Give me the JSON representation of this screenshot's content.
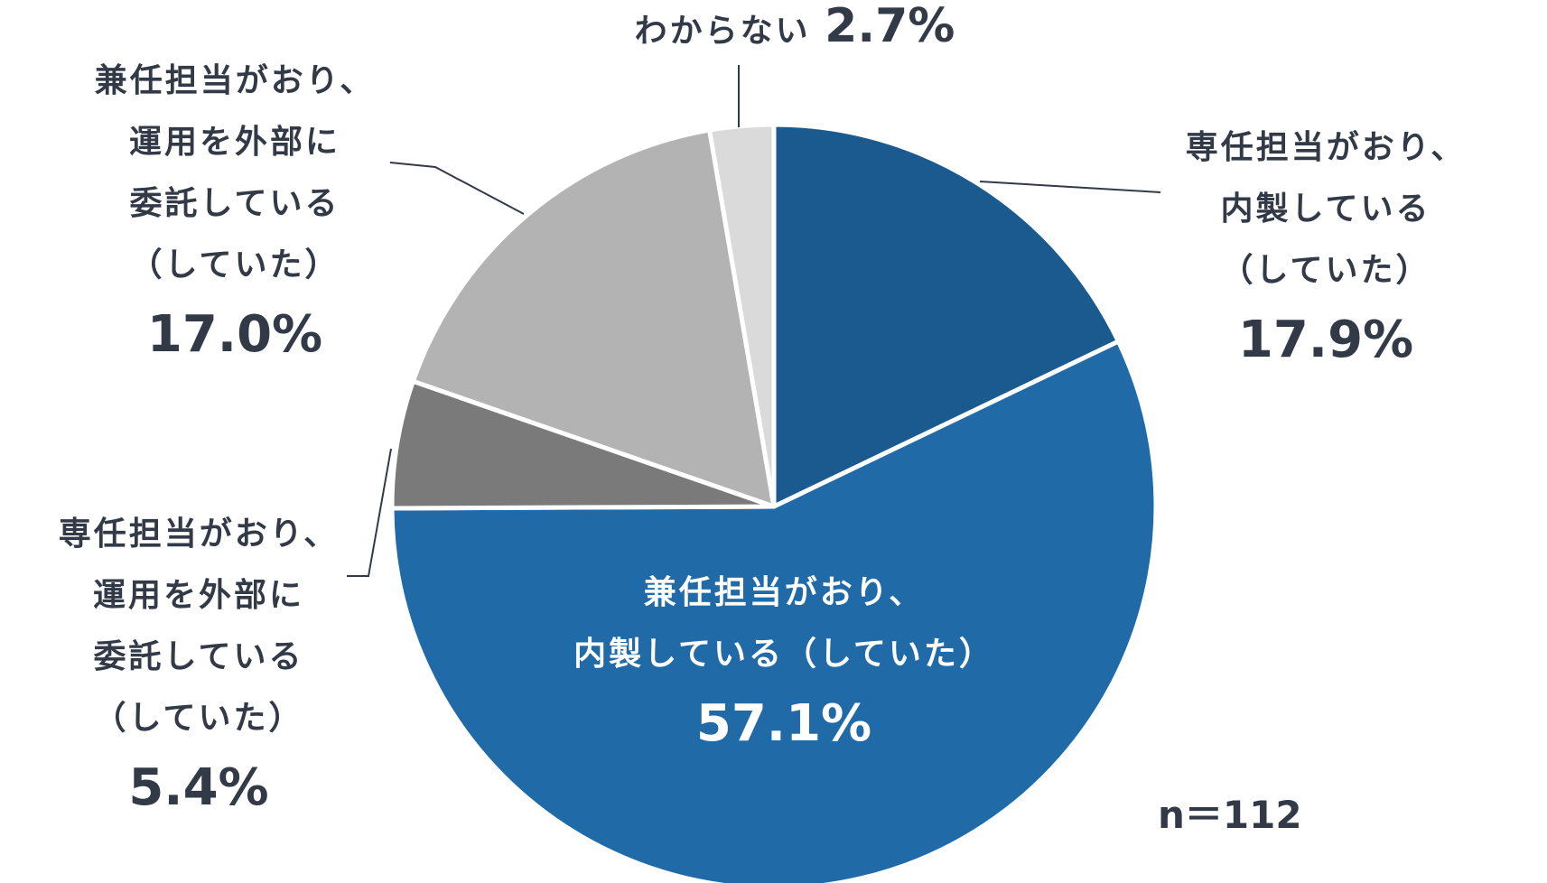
{
  "chart_data": {
    "type": "pie",
    "total": "n＝112",
    "slices": [
      {
        "lines": [
          "専任担当がおり、",
          "内製している",
          "（していた）"
        ],
        "value": 17.9,
        "value_label": "17.9%",
        "color": "#1a5a8f"
      },
      {
        "lines": [
          "兼任担当がおり、",
          "内製している（していた）"
        ],
        "value": 57.1,
        "value_label": "57.1%",
        "color": "#216aa8"
      },
      {
        "lines": [
          "専任担当がおり、",
          "運用を外部に",
          "委託している",
          "（していた）"
        ],
        "value": 5.4,
        "value_label": "5.4%",
        "color": "#7a7a7a"
      },
      {
        "lines": [
          "兼任担当がおり、",
          "運用を外部に",
          "委託している",
          "（していた）"
        ],
        "value": 17.0,
        "value_label": "17.0%",
        "color": "#b3b3b3"
      },
      {
        "lines": [
          "わからない"
        ],
        "value": 2.7,
        "value_label": "2.7%",
        "color": "#dadada"
      }
    ]
  }
}
